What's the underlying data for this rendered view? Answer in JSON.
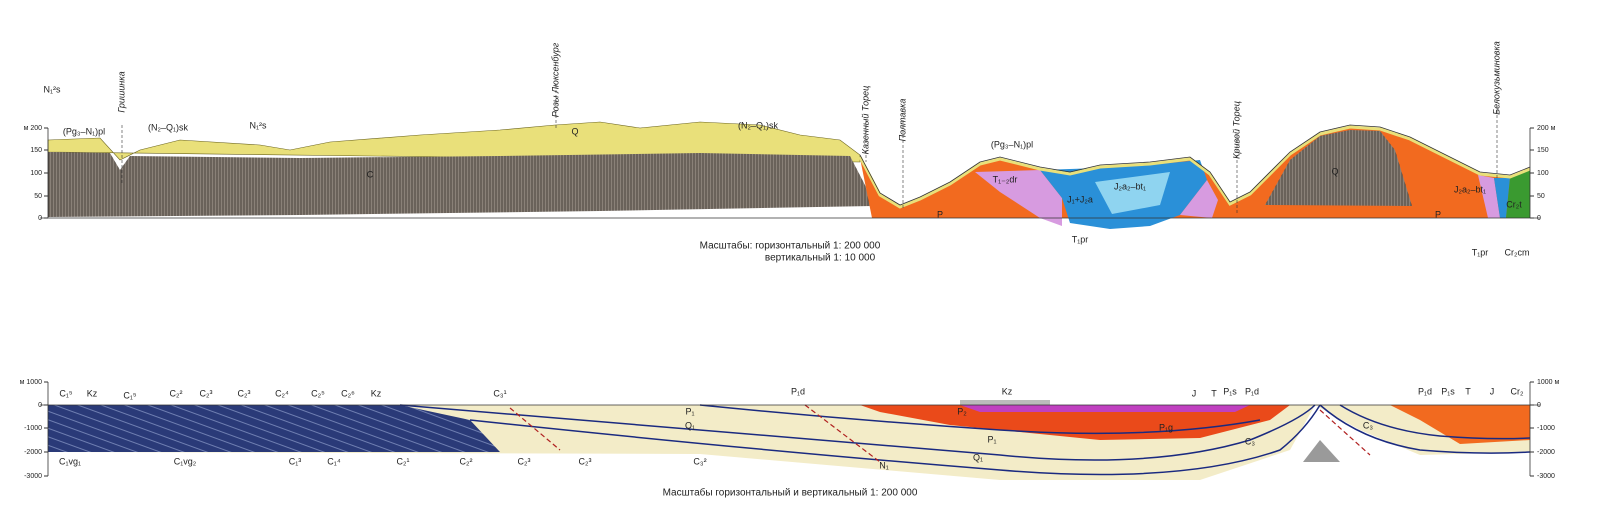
{
  "top": {
    "axis_left": [
      "м 200",
      "150",
      "100",
      "50",
      "0"
    ],
    "axis_right": [
      "200 м",
      "150",
      "100",
      "50",
      "0"
    ],
    "places": [
      "Гришинка",
      "Розы Люксенбург",
      "Казенный Торец",
      "Полтавка",
      "Кривой Торец",
      "Белокузьминовка"
    ],
    "labels": [
      "N₁²s",
      "(Pg₃–N₁)pl",
      "(N₂–Q₁)sk",
      "N₁²s",
      "Q",
      "(N₂–Q₁)sk",
      "C",
      "P",
      "(Pg₃–N₁)pl",
      "T₁₋₂dr",
      "J₂a₂–bt₁",
      "J₁+J₂a",
      "T₁pr",
      "Q",
      "P",
      "J₂a₂–bt₁",
      "Cr₂t",
      "T₁pr",
      "Cr₂cm"
    ],
    "caption": [
      "Масштабы: горизонтальный 1: 200 000",
      "вертикальный 1: 10 000"
    ]
  },
  "bottom": {
    "axis_left": [
      "м 1000",
      "0",
      "-1000",
      "-2000",
      "-3000"
    ],
    "axis_right": [
      "1000 м",
      "0",
      "-1000",
      "-2000",
      "-3000"
    ],
    "labels": [
      "C₁⁵",
      "Kz",
      "C₁⁵",
      "C₂²",
      "C₂³",
      "C₂³",
      "C₂⁴",
      "C₂⁵",
      "C₂⁶",
      "Kz",
      "C₃¹",
      "P₁d",
      "Kz",
      "J",
      "T",
      "P₁s",
      "P₁d",
      "P₁d",
      "P₁s",
      "T",
      "J",
      "Cr₂",
      "C₁vg₁",
      "C₁vg₂",
      "C₁³",
      "C₁⁴",
      "C₂¹",
      "C₂²",
      "C₂³",
      "C₂³",
      "C₃²",
      "P₂",
      "P₁g",
      "P₁",
      "Q₁",
      "N₁",
      "Q₁",
      "P₁",
      "C₃",
      "C₃"
    ],
    "caption": "Масштабы горизонтальный и вертикальный 1: 200 000"
  }
}
